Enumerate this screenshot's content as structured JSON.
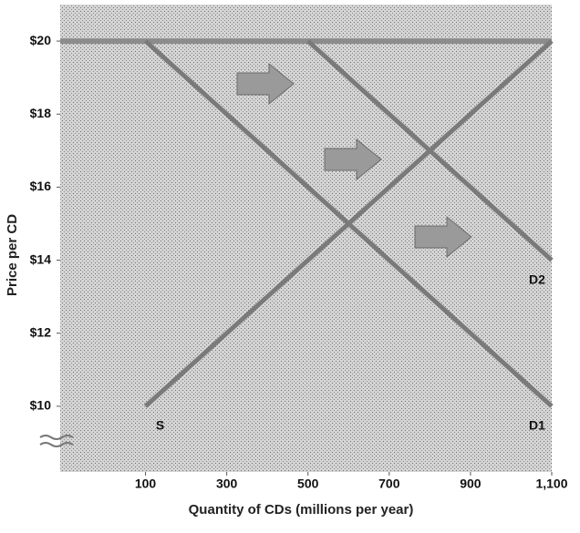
{
  "chart_data": {
    "type": "line",
    "y_label": "Price per CD",
    "x_label": "Quantity of CDs (millions per year)",
    "xlim": [
      -110,
      1100
    ],
    "ylim": [
      8.2,
      21
    ],
    "xticks": [
      100,
      300,
      500,
      700,
      900,
      {
        "value": 1100,
        "label": "1,100"
      }
    ],
    "yticks": [
      {
        "value": 10,
        "label": "$10"
      },
      {
        "value": 12,
        "label": "$12"
      },
      {
        "value": 14,
        "label": "$14"
      },
      {
        "value": 16,
        "label": "$16"
      },
      {
        "value": 18,
        "label": "$18"
      },
      {
        "value": 20,
        "label": "$20"
      }
    ],
    "series": [
      {
        "name": "S",
        "color": "#7a7a7a",
        "x": [
          100,
          1100
        ],
        "values": [
          10,
          20
        ]
      },
      {
        "name": "D1",
        "color": "#7a7a7a",
        "x": [
          100,
          1100
        ],
        "values": [
          20,
          10
        ]
      },
      {
        "name": "D2",
        "color": "#7a7a7a",
        "x": [
          500,
          1100
        ],
        "values": [
          20,
          14
        ]
      }
    ]
  }
}
